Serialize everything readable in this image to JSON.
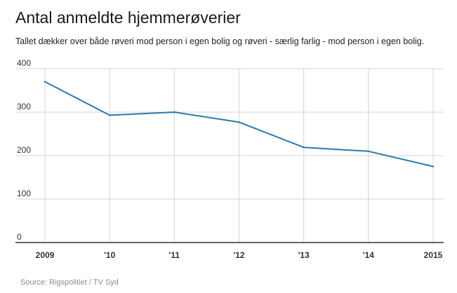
{
  "title": "Antal anmeldte hjemmerøverier",
  "subtitle": "Tallet dækker over både røveri mod person i egen bolig og røveri - særlig farlig - mod person i egen bolig.",
  "source": "Source: Rigspolitiet / TV Syd",
  "colors": {
    "line": "#2a7ab0",
    "grid": "#d4d4d4",
    "axis": "#333333",
    "label": "#333333"
  },
  "chart_data": {
    "type": "line",
    "categories": [
      "2009",
      "'10",
      "'11",
      "'12",
      "'13",
      "'14",
      "2015"
    ],
    "series": [
      {
        "values": [
          370,
          293,
          300,
          277,
          219,
          210,
          175
        ]
      }
    ],
    "ylim": [
      0,
      400
    ],
    "yticks": [
      0,
      100,
      200,
      300,
      400
    ],
    "grid": true
  }
}
